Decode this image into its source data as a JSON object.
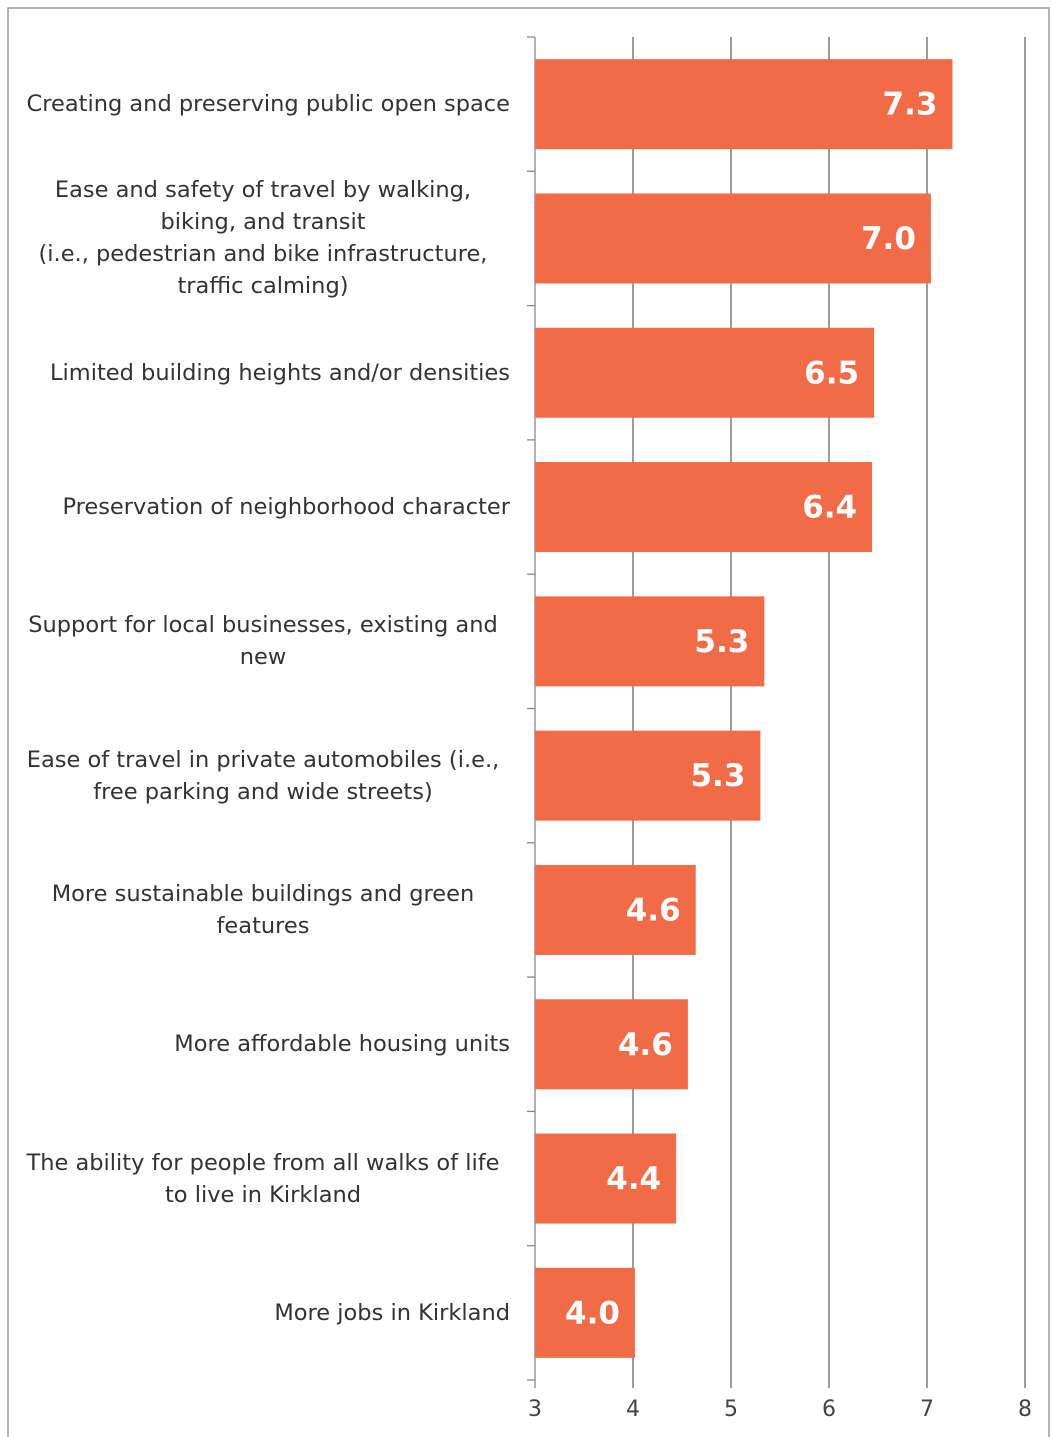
{
  "chart_data": {
    "type": "barh",
    "categories": [
      "Creating and preserving public open space",
      "Ease and safety of travel by walking, biking, and transit\n(i.e., pedestrian and bike infrastructure, traffic calming)",
      "Limited building heights and/or densities",
      "Preservation of neighborhood character",
      "Support for local businesses, existing and new",
      "Ease of travel in private automobiles (i.e., free parking and wide streets)",
      "More sustainable buildings and green features",
      "More affordable housing units",
      "The ability for people from all walks of life to live in Kirkland",
      "More jobs in Kirkland"
    ],
    "values": [
      7.26,
      7.04,
      6.46,
      6.44,
      5.34,
      5.3,
      4.64,
      4.56,
      4.44,
      4.02
    ],
    "value_labels": [
      "7.3",
      "7.0",
      "6.5",
      "6.4",
      "5.3",
      "5.3",
      "4.6",
      "4.6",
      "4.4",
      "4.0"
    ],
    "color": "#f26b47",
    "xlim": [
      3,
      8
    ],
    "xticks": [
      3,
      4,
      5,
      6,
      7,
      8
    ],
    "grid": true
  }
}
